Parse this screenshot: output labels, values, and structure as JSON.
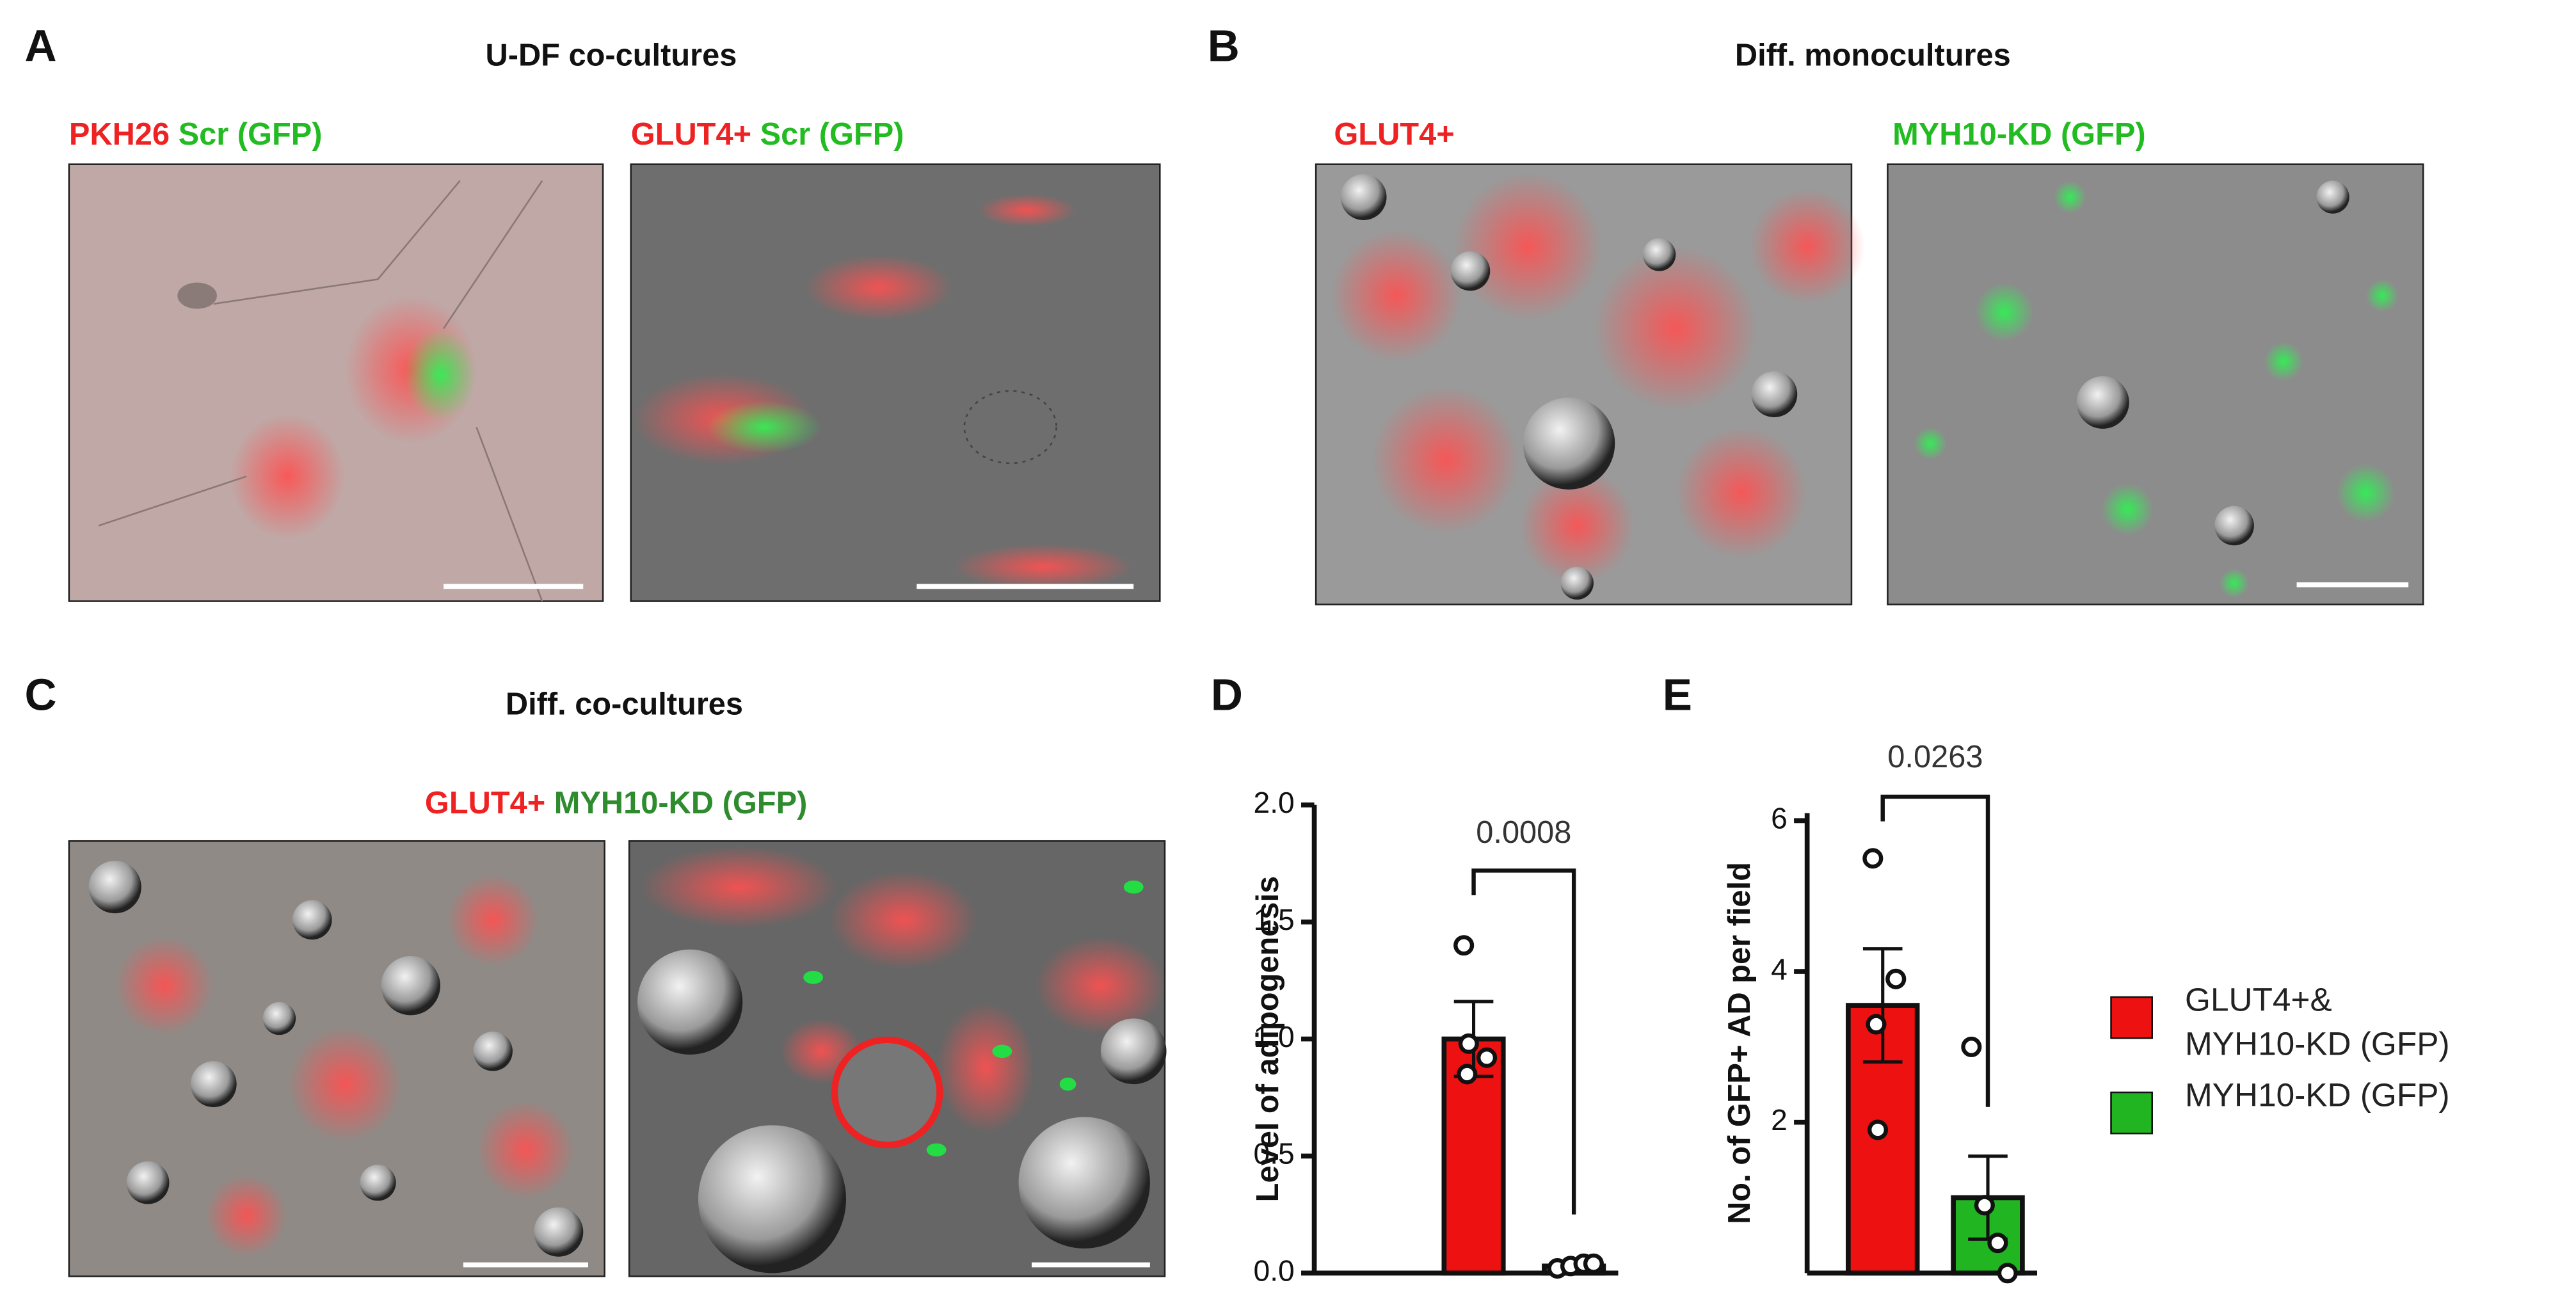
{
  "panel_a": {
    "letter": "A",
    "title": "U-DF co-cultures",
    "image_labels": [
      [
        "PKH26",
        "Scr (GFP)"
      ],
      [
        "GLUT4+",
        "Scr (GFP)"
      ]
    ]
  },
  "panel_b": {
    "letter": "B",
    "title": "Diff.  monocultures",
    "image_labels": [
      [
        "GLUT4+"
      ],
      [
        "MYH10-KD (GFP)"
      ]
    ]
  },
  "panel_c": {
    "letter": "C",
    "title": "Diff.  co-cultures",
    "image_label": [
      "GLUT4+",
      "MYH10-KD (GFP)"
    ]
  },
  "chart_data": [
    {
      "type": "bar",
      "panel_label": "D",
      "ylabel": "Level of adipogenesis",
      "ylim": [
        0,
        2.0
      ],
      "yticks": [
        {
          "value": 0,
          "label": "0.0"
        },
        {
          "value": 0.5,
          "label": "0.5"
        },
        {
          "value": 1.0,
          "label": "1.0"
        },
        {
          "value": 1.5,
          "label": "1.5"
        },
        {
          "value": 2.0,
          "label": "2.0"
        }
      ],
      "annotation": "0.0008",
      "series": [
        {
          "color": "#ee1111",
          "values": [
            1.0
          ],
          "errors": [
            0.16
          ],
          "points": [
            [
              1.4,
              0.92,
              0.85,
              0.98
            ]
          ]
        },
        {
          "color": "#22b522",
          "values": [
            0.03
          ],
          "errors": [
            0.01
          ],
          "points": [
            [
              0.02,
              0.03,
              0.04,
              0.04
            ]
          ]
        }
      ]
    },
    {
      "type": "bar",
      "panel_label": "E",
      "ylabel": "No. of GFP+ AD per field",
      "ylim": [
        0,
        6.1
      ],
      "yticks": [
        2,
        4,
        6
      ],
      "annotation": "0.0263",
      "legend": "right",
      "series": [
        {
          "name": [
            "GLUT4+&",
            "MYH10-KD (GFP)"
          ],
          "color": "#ee1111",
          "values": [
            3.55
          ],
          "errors": [
            0.75
          ],
          "points": [
            [
              5.5,
              3.9,
              3.3,
              1.9
            ]
          ]
        },
        {
          "name": [
            "MYH10-KD (GFP)"
          ],
          "color": "#22b522",
          "values": [
            1.0
          ],
          "errors": [
            0.55
          ],
          "points": [
            [
              3.0,
              0.9,
              0.4,
              0.0
            ]
          ]
        }
      ]
    }
  ]
}
